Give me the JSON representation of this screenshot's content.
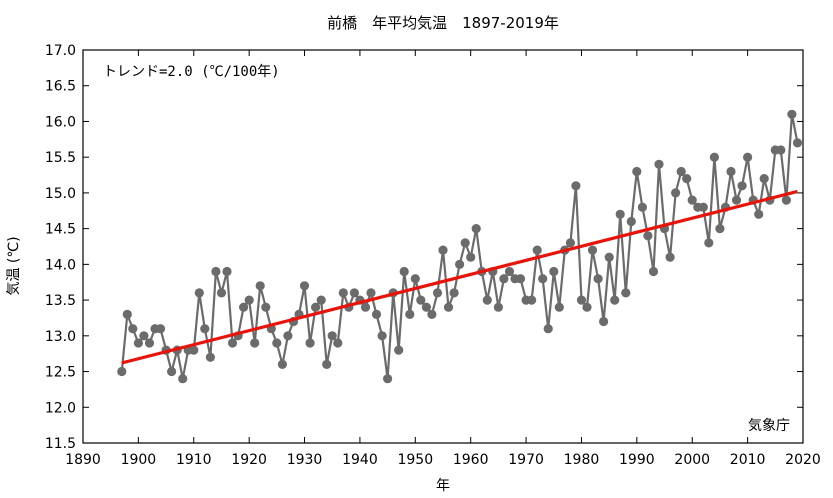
{
  "chart_data": {
    "type": "line",
    "title": "前橋　年平均気温　1897-2019年",
    "xlabel": "年",
    "ylabel": "気温 (℃)",
    "xlim": [
      1890,
      2020
    ],
    "ylim": [
      11.5,
      17.0
    ],
    "xticks": [
      1890,
      1900,
      1910,
      1920,
      1930,
      1940,
      1950,
      1960,
      1970,
      1980,
      1990,
      2000,
      2010,
      2020
    ],
    "yticks": [
      11.5,
      12.0,
      12.5,
      13.0,
      13.5,
      14.0,
      14.5,
      15.0,
      15.5,
      16.0,
      16.5,
      17.0
    ],
    "ytick_labels": [
      "11.5",
      "12.0",
      "12.5",
      "13.0",
      "13.5",
      "14.0",
      "14.5",
      "15.0",
      "15.5",
      "16.0",
      "16.5",
      "17.0"
    ],
    "grid": false,
    "trend_label": "トレンド=2.0 (℃/100年)",
    "source_label": "気象庁",
    "series": [
      {
        "name": "年平均気温",
        "color": "#6b6b6b",
        "x": [
          1897,
          1898,
          1899,
          1900,
          1901,
          1902,
          1903,
          1904,
          1905,
          1906,
          1907,
          1908,
          1909,
          1910,
          1911,
          1912,
          1913,
          1914,
          1915,
          1916,
          1917,
          1918,
          1919,
          1920,
          1921,
          1922,
          1923,
          1924,
          1925,
          1926,
          1927,
          1928,
          1929,
          1930,
          1931,
          1932,
          1933,
          1934,
          1935,
          1936,
          1937,
          1938,
          1939,
          1940,
          1941,
          1942,
          1943,
          1944,
          1945,
          1946,
          1947,
          1948,
          1949,
          1950,
          1951,
          1952,
          1953,
          1954,
          1955,
          1956,
          1957,
          1958,
          1959,
          1960,
          1961,
          1962,
          1963,
          1964,
          1965,
          1966,
          1967,
          1968,
          1969,
          1970,
          1971,
          1972,
          1973,
          1974,
          1975,
          1976,
          1977,
          1978,
          1979,
          1980,
          1981,
          1982,
          1983,
          1984,
          1985,
          1986,
          1987,
          1988,
          1989,
          1990,
          1991,
          1992,
          1993,
          1994,
          1995,
          1996,
          1997,
          1998,
          1999,
          2000,
          2001,
          2002,
          2003,
          2004,
          2005,
          2006,
          2007,
          2008,
          2009,
          2010,
          2011,
          2012,
          2013,
          2014,
          2015,
          2016,
          2017,
          2018,
          2019
        ],
        "values": [
          12.5,
          13.3,
          13.1,
          12.9,
          13.0,
          12.9,
          13.1,
          13.1,
          12.8,
          12.5,
          12.8,
          12.4,
          12.8,
          12.8,
          13.6,
          13.1,
          12.7,
          13.9,
          13.6,
          13.9,
          12.9,
          13.0,
          13.4,
          13.5,
          12.9,
          13.7,
          13.4,
          13.1,
          12.9,
          12.6,
          13.0,
          13.2,
          13.3,
          13.7,
          12.9,
          13.4,
          13.5,
          12.6,
          13.0,
          12.9,
          13.6,
          13.4,
          13.6,
          13.5,
          13.4,
          13.6,
          13.3,
          13.0,
          12.4,
          13.6,
          12.8,
          13.9,
          13.3,
          13.8,
          13.5,
          13.4,
          13.3,
          13.6,
          14.2,
          13.4,
          13.6,
          14.0,
          14.3,
          14.1,
          14.5,
          13.9,
          13.5,
          13.9,
          13.4,
          13.8,
          13.9,
          13.8,
          13.8,
          13.5,
          13.5,
          14.2,
          13.8,
          13.1,
          13.9,
          13.4,
          14.2,
          14.3,
          15.1,
          13.5,
          13.4,
          14.2,
          13.8,
          13.2,
          14.1,
          13.5,
          14.7,
          13.6,
          14.6,
          15.3,
          14.8,
          14.4,
          13.9,
          15.4,
          14.5,
          14.1,
          15.0,
          15.3,
          15.2,
          14.9,
          14.8,
          14.8,
          14.3,
          15.5,
          14.5,
          14.8,
          15.3,
          14.9,
          15.1,
          15.5,
          14.9,
          14.7,
          15.2,
          14.9,
          15.6,
          15.6,
          14.9,
          16.1,
          15.7
        ]
      },
      {
        "name": "トレンド",
        "color": "#e8140c",
        "x": [
          1897,
          2019
        ],
        "values": [
          12.62,
          15.02
        ]
      }
    ]
  }
}
